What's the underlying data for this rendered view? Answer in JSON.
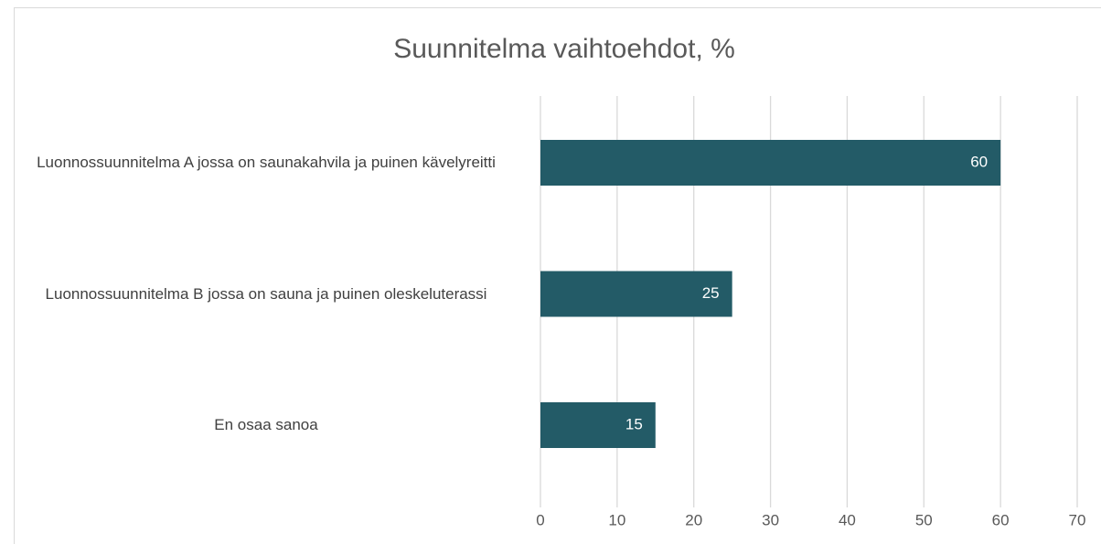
{
  "chart_data": {
    "type": "bar",
    "orientation": "horizontal",
    "title": "Suunnitelma vaihtoehdot, %",
    "categories": [
      "Luonnossuunnitelma A jossa on saunakahvila ja puinen kävelyreitti",
      "Luonnossuunnitelma B jossa on sauna ja puinen oleskeluterassi",
      "En osaa sanoa"
    ],
    "values": [
      60,
      25,
      15
    ],
    "color": "#235b67",
    "xlim": [
      0,
      70
    ],
    "xticks": [
      0,
      10,
      20,
      30,
      40,
      50,
      60,
      70
    ],
    "grid": true
  }
}
